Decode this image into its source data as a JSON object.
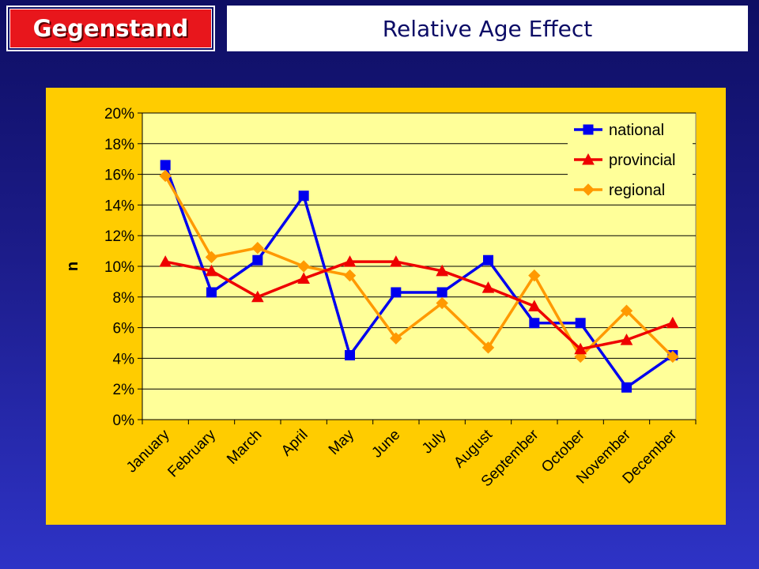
{
  "header": {
    "tag_label": "Gegenstand",
    "title": "Relative Age Effect"
  },
  "colors": {
    "national": "#0000ee",
    "provincial": "#ee0000",
    "regional": "#ff9900",
    "plot_bg": "#ffff99",
    "chart_bg": "#ffcc00"
  },
  "chart_data": {
    "type": "line",
    "title": "",
    "xlabel": "",
    "ylabel": "n",
    "ylim": [
      0,
      20
    ],
    "y_ticks": [
      "0%",
      "2%",
      "4%",
      "6%",
      "8%",
      "10%",
      "12%",
      "14%",
      "16%",
      "18%",
      "20%"
    ],
    "grid": true,
    "legend_position": "top-right",
    "categories": [
      "January",
      "February",
      "March",
      "April",
      "May",
      "June",
      "July",
      "August",
      "September",
      "October",
      "November",
      "December"
    ],
    "series": [
      {
        "name": "national",
        "marker": "square",
        "values": [
          16.6,
          8.3,
          10.4,
          14.6,
          4.2,
          8.3,
          8.3,
          10.4,
          6.3,
          6.3,
          2.1,
          4.2
        ]
      },
      {
        "name": "provincial",
        "marker": "triangle",
        "values": [
          10.3,
          9.7,
          8.0,
          9.2,
          10.3,
          10.3,
          9.7,
          8.6,
          7.4,
          4.6,
          5.2,
          6.3
        ]
      },
      {
        "name": "regional",
        "marker": "diamond",
        "values": [
          15.9,
          10.6,
          11.2,
          10.0,
          9.4,
          5.3,
          7.6,
          4.7,
          9.4,
          4.1,
          7.1,
          4.1
        ]
      }
    ]
  }
}
